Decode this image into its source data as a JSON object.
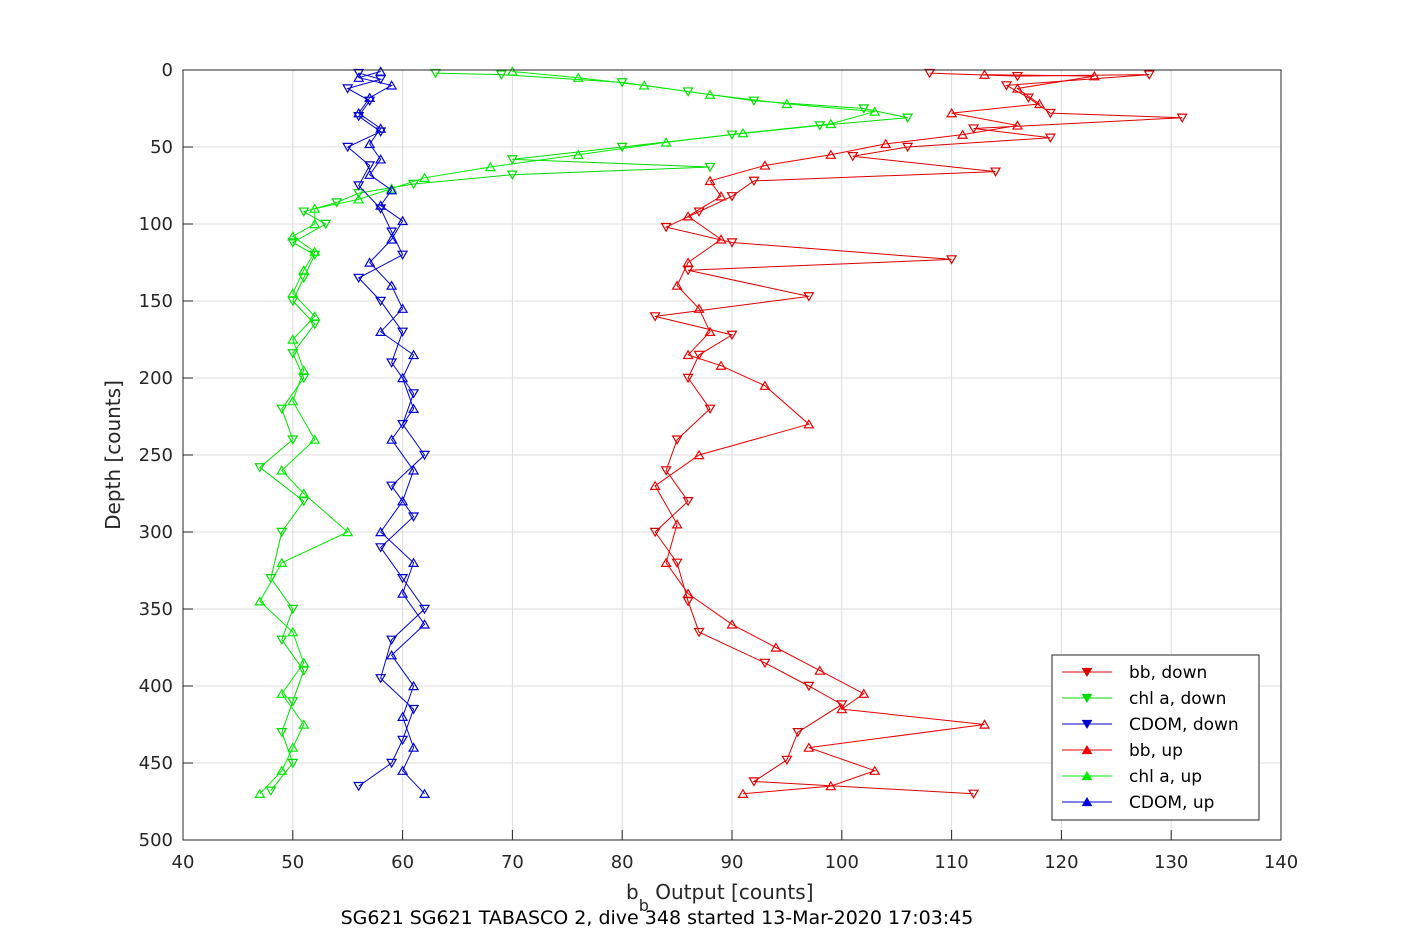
{
  "chart_data": {
    "type": "scatter",
    "title": "SG621 SG621 TABASCO 2, dive 348 started 13-Mar-2020 17:03:45",
    "xlabel_main": "b",
    "xlabel_sub": "b",
    "xlabel_rest": " Output [counts]",
    "ylabel": "Depth [counts]",
    "xlim": [
      40,
      140
    ],
    "ylim": [
      0,
      500
    ],
    "y_reversed": true,
    "grid": true,
    "xticks": [
      "40",
      "50",
      "60",
      "70",
      "80",
      "90",
      "100",
      "110",
      "120",
      "130",
      "140"
    ],
    "yticks": [
      "0",
      "50",
      "100",
      "150",
      "200",
      "250",
      "300",
      "350",
      "400",
      "450",
      "500"
    ],
    "legend_position": "bottom-right",
    "series": [
      {
        "name": "bb, down",
        "color": "#dd0000",
        "marker": "triangle-down",
        "connected": true,
        "points": [
          [
            108,
            2
          ],
          [
            116,
            4
          ],
          [
            128,
            3
          ],
          [
            115,
            10
          ],
          [
            117,
            18
          ],
          [
            119,
            28
          ],
          [
            131,
            31
          ],
          [
            112,
            38
          ],
          [
            119,
            44
          ],
          [
            106,
            50
          ],
          [
            101,
            56
          ],
          [
            114,
            66
          ],
          [
            92,
            72
          ],
          [
            90,
            82
          ],
          [
            87,
            92
          ],
          [
            84,
            102
          ],
          [
            90,
            112
          ],
          [
            110,
            123
          ],
          [
            86,
            130
          ],
          [
            97,
            147
          ],
          [
            83,
            160
          ],
          [
            90,
            172
          ],
          [
            87,
            185
          ],
          [
            86,
            200
          ],
          [
            88,
            220
          ],
          [
            85,
            240
          ],
          [
            84,
            260
          ],
          [
            86,
            280
          ],
          [
            83,
            300
          ],
          [
            85,
            320
          ],
          [
            86,
            345
          ],
          [
            87,
            365
          ],
          [
            93,
            385
          ],
          [
            97,
            400
          ],
          [
            100,
            412
          ],
          [
            96,
            430
          ],
          [
            95,
            448
          ],
          [
            92,
            462
          ],
          [
            112,
            470
          ]
        ]
      },
      {
        "name": "chl a, down",
        "color": "#00dd00",
        "marker": "triangle-down",
        "connected": true,
        "points": [
          [
            63,
            2
          ],
          [
            69,
            3
          ],
          [
            80,
            8
          ],
          [
            86,
            14
          ],
          [
            92,
            20
          ],
          [
            102,
            25
          ],
          [
            106,
            31
          ],
          [
            98,
            36
          ],
          [
            90,
            42
          ],
          [
            80,
            50
          ],
          [
            70,
            58
          ],
          [
            88,
            63
          ],
          [
            70,
            68
          ],
          [
            61,
            74
          ],
          [
            56,
            80
          ],
          [
            54,
            86
          ],
          [
            51,
            92
          ],
          [
            53,
            100
          ],
          [
            50,
            112
          ],
          [
            52,
            120
          ],
          [
            51,
            135
          ],
          [
            50,
            150
          ],
          [
            52,
            165
          ],
          [
            50,
            184
          ],
          [
            51,
            200
          ],
          [
            49,
            220
          ],
          [
            50,
            240
          ],
          [
            47,
            258
          ],
          [
            51,
            280
          ],
          [
            49,
            300
          ],
          [
            48,
            330
          ],
          [
            50,
            350
          ],
          [
            49,
            370
          ],
          [
            51,
            390
          ],
          [
            50,
            410
          ],
          [
            49,
            430
          ],
          [
            50,
            450
          ],
          [
            48,
            468
          ]
        ]
      },
      {
        "name": "CDOM, down",
        "color": "#0000cc",
        "marker": "triangle-down",
        "connected": true,
        "points": [
          [
            56,
            2
          ],
          [
            58,
            6
          ],
          [
            55,
            12
          ],
          [
            57,
            20
          ],
          [
            56,
            30
          ],
          [
            58,
            40
          ],
          [
            55,
            50
          ],
          [
            57,
            62
          ],
          [
            56,
            75
          ],
          [
            58,
            90
          ],
          [
            59,
            105
          ],
          [
            60,
            120
          ],
          [
            56,
            135
          ],
          [
            58,
            150
          ],
          [
            60,
            170
          ],
          [
            59,
            190
          ],
          [
            61,
            210
          ],
          [
            60,
            230
          ],
          [
            62,
            250
          ],
          [
            59,
            270
          ],
          [
            61,
            290
          ],
          [
            58,
            310
          ],
          [
            60,
            330
          ],
          [
            62,
            350
          ],
          [
            59,
            370
          ],
          [
            58,
            395
          ],
          [
            61,
            415
          ],
          [
            60,
            435
          ],
          [
            59,
            450
          ],
          [
            56,
            465
          ]
        ]
      },
      {
        "name": "bb, up",
        "color": "#ee0000",
        "marker": "triangle-up",
        "connected": true,
        "points": [
          [
            113,
            3
          ],
          [
            123,
            4
          ],
          [
            116,
            12
          ],
          [
            118,
            22
          ],
          [
            110,
            28
          ],
          [
            116,
            36
          ],
          [
            111,
            42
          ],
          [
            104,
            48
          ],
          [
            99,
            55
          ],
          [
            93,
            62
          ],
          [
            88,
            72
          ],
          [
            89,
            82
          ],
          [
            86,
            95
          ],
          [
            89,
            110
          ],
          [
            86,
            125
          ],
          [
            85,
            140
          ],
          [
            87,
            155
          ],
          [
            88,
            170
          ],
          [
            86,
            185
          ],
          [
            89,
            192
          ],
          [
            93,
            205
          ],
          [
            97,
            230
          ],
          [
            87,
            250
          ],
          [
            83,
            270
          ],
          [
            85,
            295
          ],
          [
            84,
            320
          ],
          [
            86,
            340
          ],
          [
            90,
            360
          ],
          [
            94,
            375
          ],
          [
            98,
            390
          ],
          [
            102,
            405
          ],
          [
            100,
            415
          ],
          [
            113,
            425
          ],
          [
            97,
            440
          ],
          [
            103,
            455
          ],
          [
            99,
            465
          ],
          [
            91,
            470
          ]
        ]
      },
      {
        "name": "chl a, up",
        "color": "#00ee00",
        "marker": "triangle-up",
        "connected": true,
        "points": [
          [
            70,
            1
          ],
          [
            76,
            5
          ],
          [
            82,
            10
          ],
          [
            88,
            16
          ],
          [
            95,
            22
          ],
          [
            103,
            27
          ],
          [
            99,
            35
          ],
          [
            91,
            41
          ],
          [
            84,
            47
          ],
          [
            76,
            55
          ],
          [
            68,
            63
          ],
          [
            62,
            70
          ],
          [
            59,
            77
          ],
          [
            56,
            84
          ],
          [
            52,
            90
          ],
          [
            52,
            100
          ],
          [
            50,
            108
          ],
          [
            52,
            118
          ],
          [
            51,
            130
          ],
          [
            50,
            145
          ],
          [
            52,
            160
          ],
          [
            50,
            175
          ],
          [
            51,
            195
          ],
          [
            50,
            215
          ],
          [
            52,
            240
          ],
          [
            49,
            260
          ],
          [
            51,
            275
          ],
          [
            55,
            300
          ],
          [
            49,
            320
          ],
          [
            47,
            345
          ],
          [
            50,
            365
          ],
          [
            51,
            385
          ],
          [
            49,
            405
          ],
          [
            51,
            425
          ],
          [
            50,
            440
          ],
          [
            49,
            455
          ],
          [
            47,
            470
          ]
        ]
      },
      {
        "name": "CDOM, up",
        "color": "#0000dd",
        "marker": "triangle-up",
        "connected": true,
        "points": [
          [
            58,
            1
          ],
          [
            56,
            5
          ],
          [
            59,
            10
          ],
          [
            57,
            18
          ],
          [
            56,
            28
          ],
          [
            58,
            38
          ],
          [
            57,
            48
          ],
          [
            58,
            58
          ],
          [
            57,
            68
          ],
          [
            59,
            78
          ],
          [
            58,
            88
          ],
          [
            60,
            98
          ],
          [
            59,
            110
          ],
          [
            57,
            125
          ],
          [
            59,
            140
          ],
          [
            60,
            155
          ],
          [
            58,
            170
          ],
          [
            61,
            185
          ],
          [
            60,
            200
          ],
          [
            61,
            220
          ],
          [
            59,
            240
          ],
          [
            61,
            260
          ],
          [
            60,
            280
          ],
          [
            58,
            300
          ],
          [
            61,
            320
          ],
          [
            60,
            340
          ],
          [
            62,
            360
          ],
          [
            59,
            380
          ],
          [
            61,
            400
          ],
          [
            60,
            420
          ],
          [
            61,
            440
          ],
          [
            60,
            455
          ],
          [
            62,
            470
          ]
        ]
      }
    ]
  }
}
